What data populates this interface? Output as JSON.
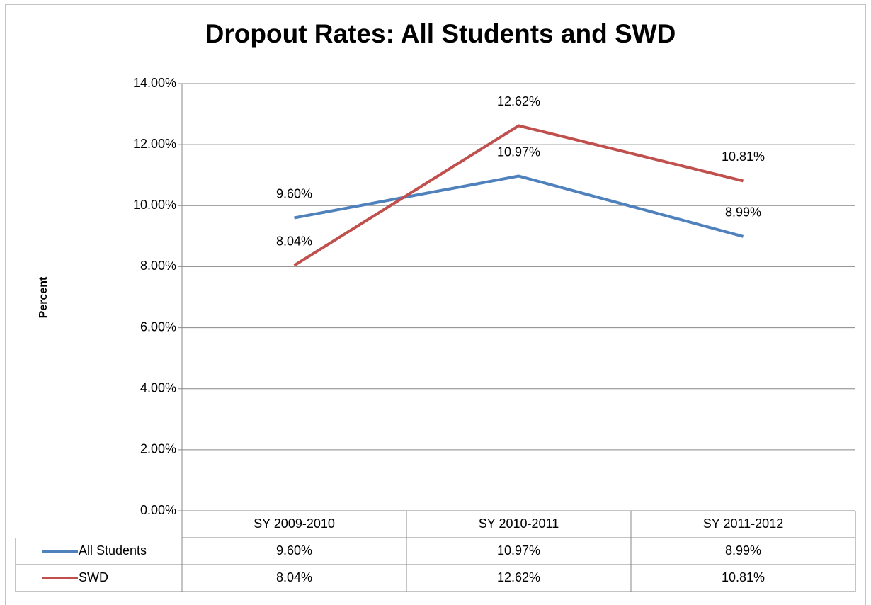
{
  "chart_data": {
    "type": "line",
    "title": "Dropout Rates:  All Students and SWD",
    "y_label": "Percent",
    "categories": [
      "SY 2009-2010",
      "SY 2010-2011",
      "SY 2011-2012"
    ],
    "series": [
      {
        "name": "All Students",
        "color": "#4f81bd",
        "values": [
          9.6,
          10.97,
          8.99
        ],
        "value_labels": [
          "9.60%",
          "10.97%",
          "8.99%"
        ]
      },
      {
        "name": "SWD",
        "color": "#c0504d",
        "values": [
          8.04,
          12.62,
          10.81
        ],
        "value_labels": [
          "8.04%",
          "12.62%",
          "10.81%"
        ]
      }
    ],
    "ylim": [
      0,
      14
    ],
    "yticks": [
      {
        "value": 0,
        "label": "0.00%"
      },
      {
        "value": 2,
        "label": "2.00%"
      },
      {
        "value": 4,
        "label": "4.00%"
      },
      {
        "value": 6,
        "label": "6.00%"
      },
      {
        "value": 8,
        "label": "8.00%"
      },
      {
        "value": 10,
        "label": "10.00%"
      },
      {
        "value": 12,
        "label": "12.00%"
      },
      {
        "value": 14,
        "label": "14.00%"
      }
    ],
    "grid": true,
    "legend": "data-table"
  }
}
